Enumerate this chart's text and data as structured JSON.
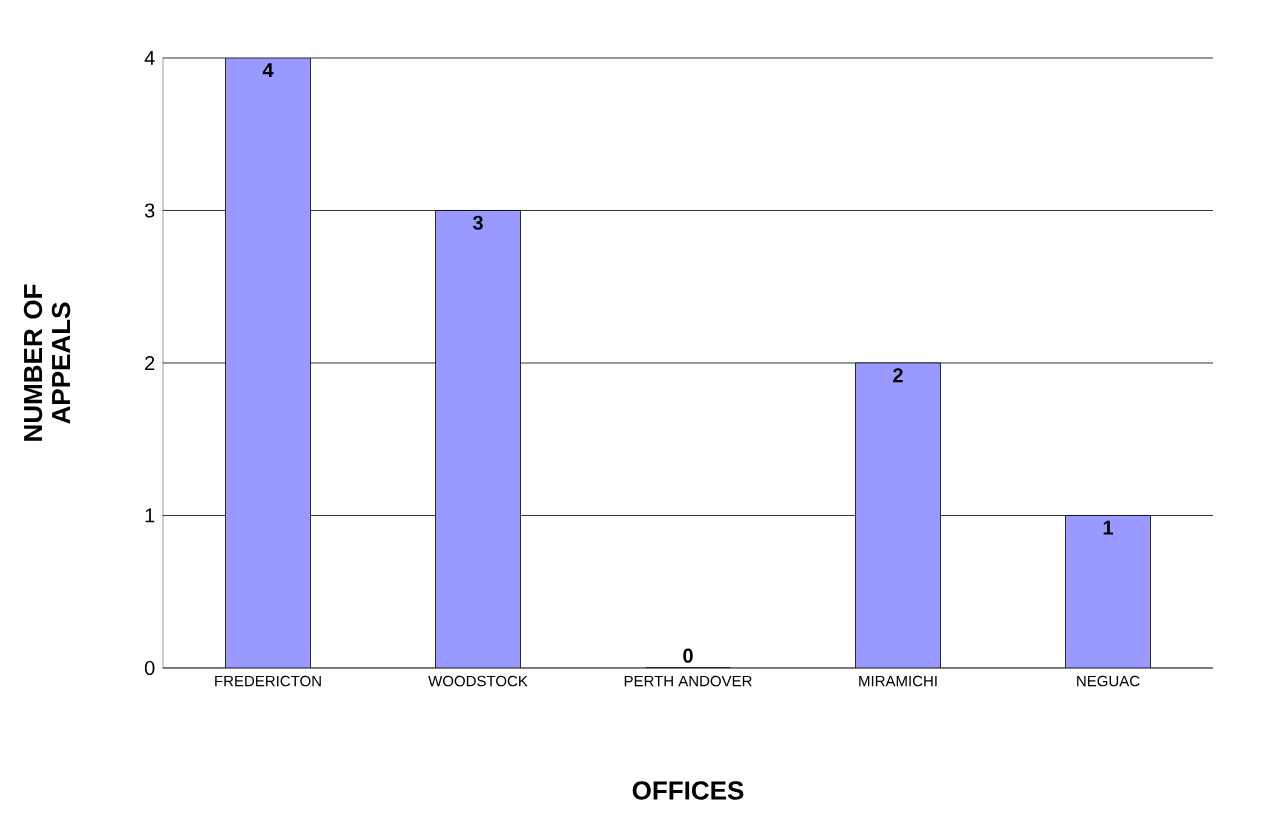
{
  "chart_data": {
    "type": "bar",
    "xlabel": "OFFICES",
    "ylabel": "NUMBER OF APPEALS",
    "categories": [
      "FREDERICTON",
      "WOODSTOCK",
      "PERTH ANDOVER",
      "MIRAMICHI",
      "NEGUAC"
    ],
    "values": [
      4,
      3,
      0,
      2,
      1
    ],
    "color": "#9999ff",
    "ylim": [
      0,
      4
    ],
    "yticks": [
      0,
      1,
      2,
      3,
      4
    ],
    "grid": "y",
    "data_labels": true
  }
}
